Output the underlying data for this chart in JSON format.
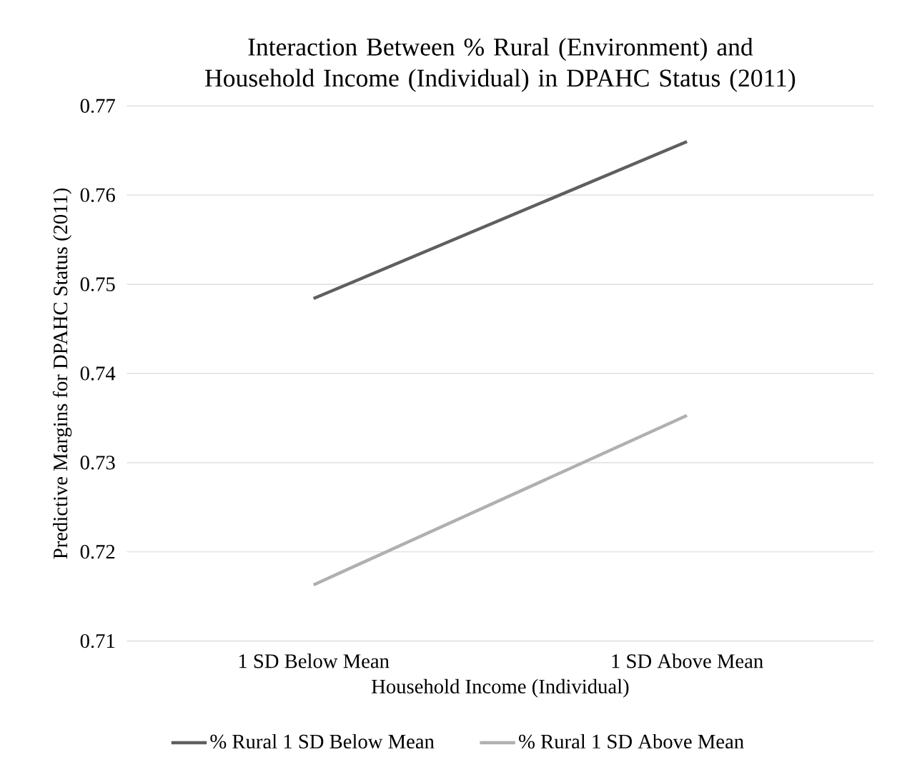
{
  "chart_data": {
    "type": "line",
    "title": "Interaction Between % Rural (Environment) and Household Income (Individual) in DPAHC Status (2011)",
    "xlabel": "Household Income (Individual)",
    "ylabel": "Predictive Margins for  DPAHC Status (2011)",
    "categories": [
      "1 SD Below Mean",
      "1 SD Above Mean"
    ],
    "series": [
      {
        "name": "% Rural 1 SD Below Mean",
        "color": "#5f5f5f",
        "values": [
          0.7484,
          0.766
        ]
      },
      {
        "name": "% Rural 1 SD Above Mean",
        "color": "#b0b0b0",
        "values": [
          0.7163,
          0.7353
        ]
      }
    ],
    "ylim": [
      0.71,
      0.77
    ],
    "yticks": [
      0.71,
      0.72,
      0.73,
      0.74,
      0.75,
      0.76,
      0.77
    ],
    "grid": "y",
    "legend": "bottom",
    "line_style": "solid"
  }
}
